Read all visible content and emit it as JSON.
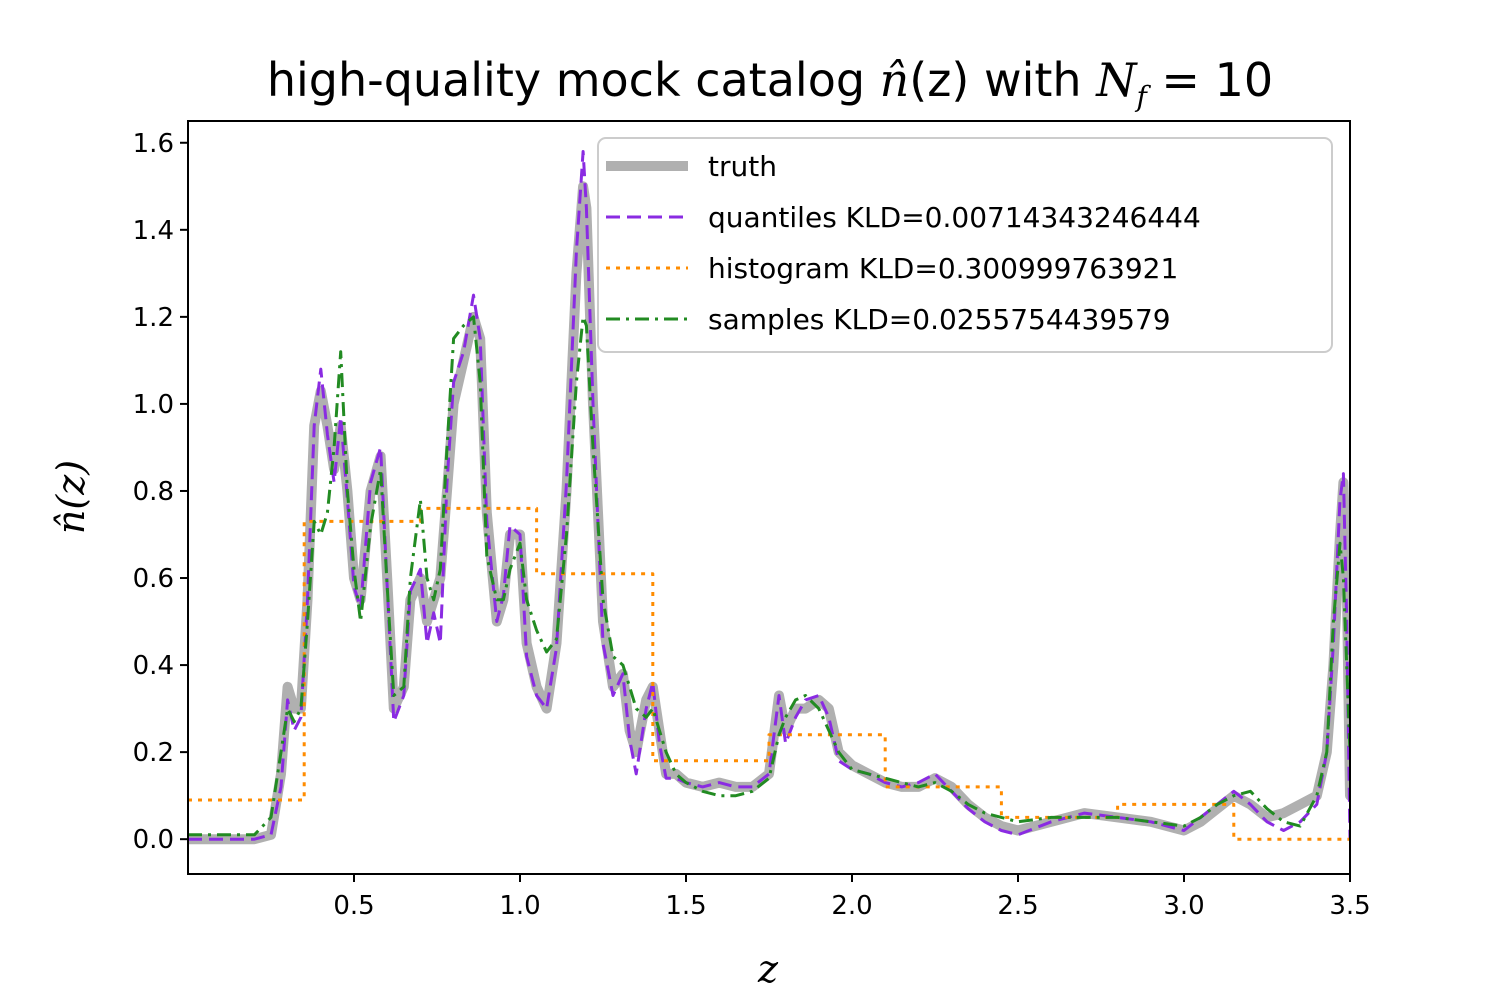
{
  "chart_data": {
    "type": "line",
    "title_parts": {
      "prefix": "high-quality mock catalog ",
      "nhat": "n̂",
      "arg": "(z)",
      "middle": " with ",
      "N": "N",
      "sub": "f",
      "equals": " = ",
      "value": "10"
    },
    "xlabel": "z",
    "ylabel": "n̂(z)",
    "xlim": [
      0.0,
      3.5
    ],
    "ylim": [
      -0.08,
      1.65
    ],
    "xticks": [
      "0.5",
      "1.0",
      "1.5",
      "2.0",
      "2.5",
      "3.0",
      "3.5"
    ],
    "yticks": [
      "0.0",
      "0.2",
      "0.4",
      "0.6",
      "0.8",
      "1.0",
      "1.2",
      "1.4",
      "1.6"
    ],
    "legend_position": "top-right",
    "series": [
      {
        "name": "truth",
        "label": "truth",
        "color": "#b0b0b0",
        "style": "solid",
        "x": [
          0.0,
          0.2,
          0.25,
          0.28,
          0.3,
          0.32,
          0.34,
          0.36,
          0.38,
          0.4,
          0.42,
          0.44,
          0.46,
          0.48,
          0.5,
          0.52,
          0.55,
          0.58,
          0.6,
          0.62,
          0.65,
          0.67,
          0.7,
          0.72,
          0.74,
          0.76,
          0.78,
          0.8,
          0.83,
          0.86,
          0.88,
          0.9,
          0.93,
          0.95,
          0.97,
          1.0,
          1.02,
          1.05,
          1.08,
          1.11,
          1.14,
          1.17,
          1.19,
          1.2,
          1.22,
          1.25,
          1.28,
          1.31,
          1.33,
          1.35,
          1.38,
          1.4,
          1.42,
          1.44,
          1.47,
          1.5,
          1.55,
          1.6,
          1.65,
          1.7,
          1.75,
          1.78,
          1.8,
          1.83,
          1.86,
          1.9,
          1.93,
          1.96,
          2.0,
          2.05,
          2.1,
          2.15,
          2.2,
          2.25,
          2.3,
          2.35,
          2.4,
          2.45,
          2.5,
          2.6,
          2.7,
          2.8,
          2.9,
          3.0,
          3.05,
          3.1,
          3.15,
          3.2,
          3.25,
          3.3,
          3.35,
          3.4,
          3.43,
          3.45,
          3.47,
          3.48,
          3.49,
          3.5
        ],
        "y": [
          0.0,
          0.0,
          0.01,
          0.15,
          0.35,
          0.3,
          0.3,
          0.55,
          0.95,
          1.03,
          0.95,
          0.85,
          0.95,
          0.8,
          0.6,
          0.55,
          0.8,
          0.88,
          0.6,
          0.3,
          0.35,
          0.55,
          0.6,
          0.5,
          0.55,
          0.6,
          0.8,
          1.0,
          1.1,
          1.2,
          1.15,
          0.75,
          0.5,
          0.55,
          0.7,
          0.7,
          0.45,
          0.35,
          0.3,
          0.45,
          0.8,
          1.3,
          1.5,
          1.45,
          1.0,
          0.5,
          0.35,
          0.38,
          0.25,
          0.2,
          0.32,
          0.35,
          0.25,
          0.15,
          0.15,
          0.13,
          0.12,
          0.13,
          0.12,
          0.12,
          0.15,
          0.33,
          0.25,
          0.3,
          0.3,
          0.32,
          0.3,
          0.2,
          0.17,
          0.15,
          0.13,
          0.12,
          0.12,
          0.14,
          0.12,
          0.08,
          0.05,
          0.03,
          0.02,
          0.04,
          0.06,
          0.05,
          0.04,
          0.02,
          0.04,
          0.07,
          0.1,
          0.08,
          0.05,
          0.06,
          0.08,
          0.1,
          0.2,
          0.4,
          0.7,
          0.82,
          0.6,
          0.1
        ]
      },
      {
        "name": "quantiles",
        "label": "quantiles KLD=0.00714343246444",
        "color": "#8a2be2",
        "style": "dashed",
        "x": [
          0.0,
          0.2,
          0.25,
          0.28,
          0.3,
          0.32,
          0.34,
          0.36,
          0.38,
          0.4,
          0.42,
          0.44,
          0.46,
          0.48,
          0.5,
          0.52,
          0.55,
          0.58,
          0.6,
          0.62,
          0.65,
          0.67,
          0.7,
          0.72,
          0.74,
          0.76,
          0.78,
          0.8,
          0.83,
          0.86,
          0.88,
          0.9,
          0.93,
          0.95,
          0.97,
          1.0,
          1.02,
          1.05,
          1.08,
          1.11,
          1.14,
          1.17,
          1.19,
          1.2,
          1.22,
          1.25,
          1.28,
          1.31,
          1.33,
          1.35,
          1.38,
          1.4,
          1.42,
          1.44,
          1.47,
          1.5,
          1.55,
          1.6,
          1.65,
          1.7,
          1.75,
          1.78,
          1.8,
          1.83,
          1.86,
          1.9,
          1.93,
          1.96,
          2.0,
          2.05,
          2.1,
          2.15,
          2.2,
          2.25,
          2.3,
          2.35,
          2.4,
          2.45,
          2.5,
          2.6,
          2.7,
          2.8,
          2.9,
          3.0,
          3.05,
          3.1,
          3.15,
          3.2,
          3.25,
          3.3,
          3.35,
          3.4,
          3.43,
          3.45,
          3.47,
          3.48,
          3.49,
          3.5
        ],
        "y": [
          0.0,
          0.0,
          0.01,
          0.12,
          0.32,
          0.25,
          0.28,
          0.55,
          0.95,
          1.08,
          0.93,
          0.82,
          0.97,
          0.78,
          0.58,
          0.53,
          0.82,
          0.9,
          0.58,
          0.27,
          0.33,
          0.57,
          0.62,
          0.45,
          0.52,
          0.45,
          0.82,
          1.05,
          1.12,
          1.25,
          1.15,
          0.73,
          0.5,
          0.56,
          0.72,
          0.7,
          0.42,
          0.33,
          0.3,
          0.44,
          0.82,
          1.35,
          1.58,
          1.45,
          1.0,
          0.45,
          0.33,
          0.38,
          0.23,
          0.15,
          0.3,
          0.36,
          0.22,
          0.14,
          0.14,
          0.13,
          0.12,
          0.13,
          0.12,
          0.12,
          0.15,
          0.33,
          0.22,
          0.28,
          0.32,
          0.33,
          0.28,
          0.18,
          0.16,
          0.15,
          0.13,
          0.12,
          0.13,
          0.15,
          0.11,
          0.07,
          0.04,
          0.02,
          0.01,
          0.04,
          0.06,
          0.05,
          0.04,
          0.02,
          0.05,
          0.08,
          0.11,
          0.08,
          0.04,
          0.02,
          0.04,
          0.08,
          0.2,
          0.45,
          0.78,
          0.84,
          0.5,
          0.0
        ]
      },
      {
        "name": "histogram",
        "label": "histogram KLD=0.300999763921",
        "color": "#ff8c00",
        "style": "dotted",
        "x": [
          0.0,
          0.35,
          0.35,
          0.7,
          0.7,
          1.05,
          1.05,
          1.4,
          1.4,
          1.75,
          1.75,
          2.1,
          2.1,
          2.45,
          2.45,
          2.8,
          2.8,
          3.15,
          3.15,
          3.5
        ],
        "y": [
          0.09,
          0.09,
          0.73,
          0.73,
          0.76,
          0.76,
          0.61,
          0.61,
          0.18,
          0.18,
          0.24,
          0.24,
          0.12,
          0.12,
          0.05,
          0.05,
          0.08,
          0.08,
          0.0,
          0.0
        ]
      },
      {
        "name": "samples",
        "label": "samples KLD=0.0255754439579",
        "color": "#228b22",
        "style": "dashdot",
        "x": [
          0.0,
          0.2,
          0.25,
          0.28,
          0.3,
          0.32,
          0.34,
          0.36,
          0.38,
          0.4,
          0.42,
          0.44,
          0.46,
          0.48,
          0.5,
          0.52,
          0.55,
          0.58,
          0.6,
          0.62,
          0.65,
          0.67,
          0.7,
          0.72,
          0.74,
          0.76,
          0.78,
          0.8,
          0.83,
          0.86,
          0.88,
          0.9,
          0.93,
          0.95,
          0.97,
          1.0,
          1.02,
          1.05,
          1.08,
          1.11,
          1.14,
          1.17,
          1.19,
          1.2,
          1.22,
          1.25,
          1.28,
          1.31,
          1.33,
          1.35,
          1.38,
          1.4,
          1.42,
          1.44,
          1.47,
          1.5,
          1.55,
          1.6,
          1.65,
          1.7,
          1.75,
          1.78,
          1.8,
          1.83,
          1.86,
          1.9,
          1.93,
          1.96,
          2.0,
          2.05,
          2.1,
          2.15,
          2.2,
          2.25,
          2.3,
          2.35,
          2.4,
          2.45,
          2.5,
          2.6,
          2.7,
          2.8,
          2.9,
          3.0,
          3.05,
          3.1,
          3.15,
          3.2,
          3.25,
          3.3,
          3.35,
          3.4,
          3.43,
          3.45,
          3.47,
          3.48,
          3.49,
          3.5
        ],
        "y": [
          0.01,
          0.01,
          0.05,
          0.2,
          0.3,
          0.27,
          0.3,
          0.5,
          0.73,
          0.7,
          0.75,
          0.9,
          1.12,
          0.8,
          0.62,
          0.5,
          0.72,
          0.85,
          0.58,
          0.33,
          0.35,
          0.6,
          0.78,
          0.6,
          0.55,
          0.62,
          0.9,
          1.15,
          1.18,
          1.2,
          1.05,
          0.65,
          0.55,
          0.55,
          0.62,
          0.68,
          0.55,
          0.48,
          0.43,
          0.46,
          0.7,
          1.05,
          1.2,
          1.18,
          0.9,
          0.55,
          0.42,
          0.4,
          0.35,
          0.3,
          0.28,
          0.3,
          0.25,
          0.2,
          0.15,
          0.13,
          0.11,
          0.1,
          0.1,
          0.11,
          0.14,
          0.24,
          0.28,
          0.32,
          0.33,
          0.3,
          0.25,
          0.2,
          0.16,
          0.15,
          0.14,
          0.13,
          0.12,
          0.13,
          0.11,
          0.08,
          0.06,
          0.05,
          0.04,
          0.05,
          0.05,
          0.05,
          0.04,
          0.03,
          0.05,
          0.08,
          0.1,
          0.11,
          0.07,
          0.04,
          0.03,
          0.1,
          0.2,
          0.5,
          0.68,
          0.6,
          0.4,
          0.2
        ]
      }
    ]
  }
}
